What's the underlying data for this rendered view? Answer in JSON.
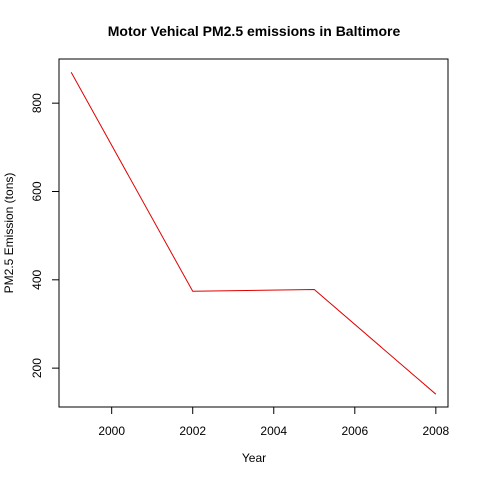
{
  "chart_data": {
    "type": "line",
    "title": "Motor Vehical PM2.5 emissions in Baltimore",
    "xlabel": "Year",
    "ylabel": "PM2.5 Emission (tons)",
    "x": [
      1999,
      2002,
      2005,
      2008
    ],
    "series": [
      {
        "values": [
          870,
          374,
          378,
          141
        ],
        "color": "#e00000"
      }
    ],
    "xlim": [
      1998.7,
      2008.3
    ],
    "ylim": [
      112,
      900
    ],
    "xticks": [
      2000,
      2002,
      2004,
      2006,
      2008
    ],
    "yticks": [
      200,
      400,
      600,
      800
    ],
    "grid": false,
    "legend": "none"
  }
}
